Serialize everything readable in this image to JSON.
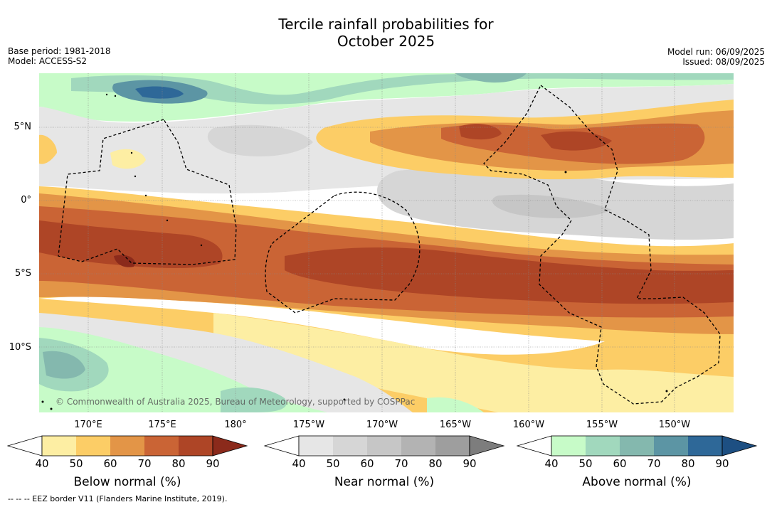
{
  "title_line1": "Tercile rainfall probabilities for",
  "title_line2": "October 2025",
  "base_period": "Base period: 1981-2018",
  "model": "Model: ACCESS-S2",
  "model_run": "Model run: 06/09/2025",
  "issued": "Issued: 08/09/2025",
  "latitude_labels": [
    "5°N",
    "0°",
    "5°S",
    "10°S"
  ],
  "longitude_labels": [
    "170°E",
    "175°E",
    "180°",
    "175°W",
    "170°W",
    "165°W",
    "160°W",
    "155°W",
    "150°W"
  ],
  "copyright": "© Commonwealth of Australia 2025, Bureau of Meteorology, supported by COSPPac",
  "footer": "-- -- -- EEZ border V11 (Flanders Marine Institute, 2019).",
  "colorbars": [
    {
      "label": "Below normal (%)",
      "ticks": [
        "40",
        "50",
        "60",
        "70",
        "80",
        "90"
      ],
      "colors": [
        "#ffffff",
        "#fdeea3",
        "#fccd66",
        "#e39547",
        "#ca6435",
        "#ae4526",
        "#8b2a1b"
      ]
    },
    {
      "label": "Near normal (%)",
      "ticks": [
        "40",
        "50",
        "60",
        "70",
        "80",
        "90"
      ],
      "colors": [
        "#ffffff",
        "#e6e6e6",
        "#d6d6d6",
        "#c6c6c6",
        "#b3b3b3",
        "#9e9e9e",
        "#7d7d7d"
      ]
    },
    {
      "label": "Above normal (%)",
      "ticks": [
        "40",
        "50",
        "60",
        "70",
        "80",
        "90"
      ],
      "colors": [
        "#ffffff",
        "#c7fbc8",
        "#a1d8bd",
        "#84b8ae",
        "#5c95a4",
        "#2e6898",
        "#1d4f82"
      ]
    }
  ]
}
